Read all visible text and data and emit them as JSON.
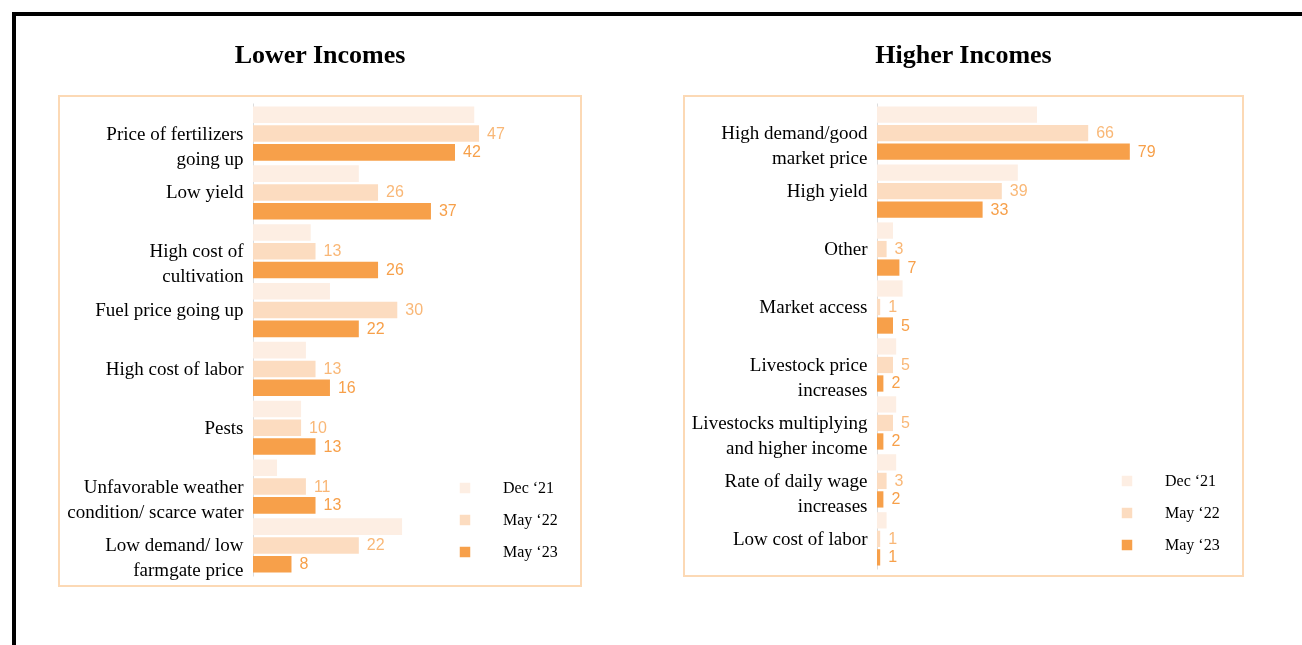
{
  "chart_data": [
    {
      "type": "bar",
      "orientation": "horizontal",
      "title": "Lower Incomes",
      "legend": "bottom right",
      "grid": false,
      "categories": [
        "Price of fertilizers going up",
        "Low yield",
        "High cost of cultivation",
        "Fuel price going up",
        "High cost of labor",
        "Pests",
        "Unfavorable weather condition/ scarce water",
        "Low demand/ low farmgate price"
      ],
      "series": [
        {
          "name": "Dec ‘21",
          "color": "#fdeee3",
          "values": [
            46,
            22,
            12,
            16,
            11,
            10,
            5,
            31
          ],
          "value_labels": [
            null,
            null,
            null,
            null,
            null,
            null,
            null,
            null
          ]
        },
        {
          "name": "May ‘22",
          "color": "#fcdcc0",
          "values": [
            47,
            26,
            13,
            30,
            13,
            10,
            11,
            22
          ],
          "value_labels": [
            "47",
            "26",
            "13",
            "30",
            "13",
            "10",
            "11",
            "22"
          ]
        },
        {
          "name": "May ‘23",
          "color": "#f7a04a",
          "values": [
            42,
            37,
            26,
            22,
            16,
            13,
            13,
            8
          ],
          "value_labels": [
            "42",
            "37",
            "26",
            "22",
            "16",
            "13",
            "13",
            "8"
          ]
        }
      ]
    },
    {
      "type": "bar",
      "orientation": "horizontal",
      "title": "Higher Incomes",
      "legend": "bottom right",
      "grid": false,
      "categories": [
        "High demand/good market price",
        "High yield",
        "Other",
        "Market access",
        "Livestock price increases",
        "Livestocks multiplying and higher income",
        "Rate of daily wage increases",
        "Low cost of labor"
      ],
      "series": [
        {
          "name": "Dec ‘21",
          "color": "#fdeee3",
          "values": [
            50,
            44,
            5,
            8,
            6,
            6,
            6,
            3
          ],
          "value_labels": [
            null,
            null,
            null,
            null,
            null,
            null,
            null,
            null
          ]
        },
        {
          "name": "May ‘22",
          "color": "#fcdcc0",
          "values": [
            66,
            39,
            3,
            1,
            5,
            5,
            3,
            1
          ],
          "value_labels": [
            "66",
            "39",
            "3",
            "1",
            "5",
            "5",
            "3",
            "1"
          ]
        },
        {
          "name": "May ‘23",
          "color": "#f7a04a",
          "values": [
            79,
            33,
            7,
            5,
            2,
            2,
            2,
            1
          ],
          "value_labels": [
            "79",
            "33",
            "7",
            "5",
            "2",
            "2",
            "2",
            "1"
          ]
        }
      ]
    }
  ]
}
